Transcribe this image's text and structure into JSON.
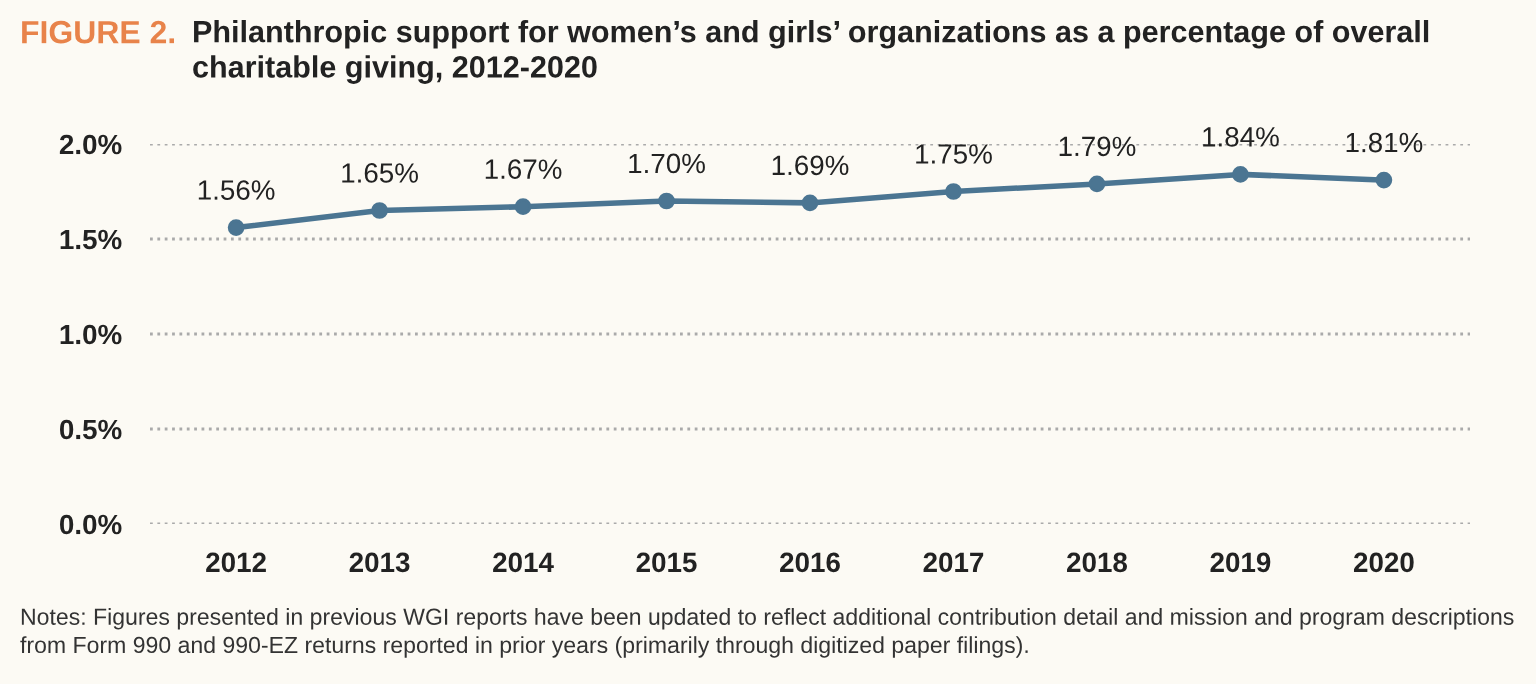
{
  "chart_data": {
    "type": "line",
    "subtitle": "FIGURE 2.",
    "title": "Philanthropic support for women’s and girls’ organizations as a percentage of overall\ncharitable giving, 2012-2020",
    "categories": [
      "2012",
      "2013",
      "2014",
      "2015",
      "2016",
      "2017",
      "2018",
      "2019",
      "2020"
    ],
    "series": [
      {
        "color": "#4b7592",
        "values": [
          1.56,
          1.65,
          1.67,
          1.7,
          1.69,
          1.75,
          1.79,
          1.84,
          1.81
        ],
        "value_labels": [
          "1.56%",
          "1.65%",
          "1.67%",
          "1.70%",
          "1.69%",
          "1.75%",
          "1.79%",
          "1.84%",
          "1.81%"
        ]
      }
    ],
    "ylim": [
      0,
      2.0
    ],
    "yticks": [
      {
        "value": 0,
        "label": "0.0%"
      },
      {
        "value": 0.5,
        "label": "0.5%"
      },
      {
        "value": 1.0,
        "label": "1.0%"
      },
      {
        "value": 1.5,
        "label": "1.5%"
      },
      {
        "value": 2.0,
        "label": "2.0%"
      }
    ],
    "grid": "y",
    "marker": "circle",
    "line_style": "solid",
    "legend": false,
    "annotations": [
      "Notes: Figures presented in previous WGI reports have been updated to reflect additional contribution detail and mission and program descriptions\nfrom Form 990 and 990-EZ returns reported in prior years (primarily through digitized paper filings)."
    ]
  }
}
